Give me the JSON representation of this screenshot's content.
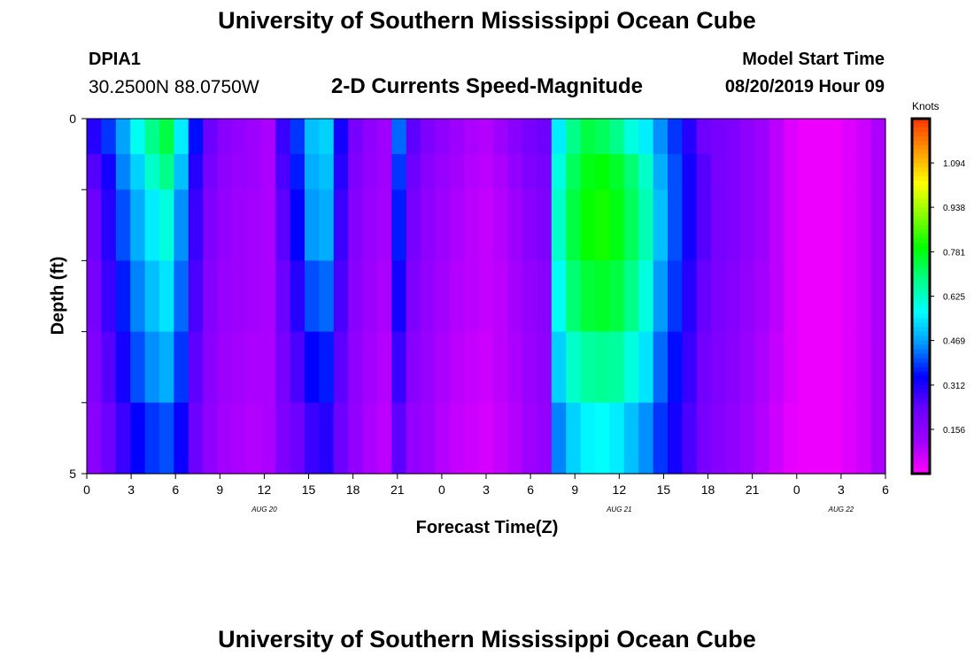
{
  "header": {
    "title": "University of Southern Mississippi Ocean Cube",
    "footer_title": "University of Southern Mississippi Ocean Cube",
    "station_id": "DPIA1",
    "station_coords": "30.2500N 88.0750W",
    "subtitle": "2-D Currents Speed-Magnitude",
    "model_label": "Model Start Time",
    "model_time": "08/20/2019 Hour 09"
  },
  "chart_data": {
    "type": "heatmap",
    "title": "2-D Currents Speed-Magnitude",
    "xlabel": "Forecast Time(Z)",
    "ylabel": "Depth (ft)",
    "x_tick_labels": [
      "0",
      "3",
      "6",
      "9",
      "12",
      "15",
      "18",
      "21",
      "0",
      "3",
      "6",
      "9",
      "12",
      "15",
      "18",
      "21",
      "0",
      "3",
      "6"
    ],
    "y_tick_labels": [
      "0",
      "5"
    ],
    "y_range": [
      0,
      5
    ],
    "day_labels": [
      {
        "label": "AUG 20",
        "hour": 12
      },
      {
        "label": "AUG 21",
        "hour": 36
      },
      {
        "label": "AUG 22",
        "hour": 51
      }
    ],
    "colorbar": {
      "unit": "Knots",
      "tick_labels": [
        "1.094",
        "0.938",
        "0.781",
        "0.625",
        "0.469",
        "0.312",
        "0.156"
      ],
      "ticks": [
        1.094,
        0.938,
        0.781,
        0.625,
        0.469,
        0.312,
        0.156
      ],
      "range": [
        0,
        1.25
      ],
      "colors": [
        "#ff00ff",
        "#a000ff",
        "#6a00ff",
        "#0000ff",
        "#0096ff",
        "#00ffff",
        "#00ff88",
        "#00ff00",
        "#88ff00",
        "#ffff00",
        "#ff9900",
        "#ff3300"
      ]
    },
    "hours": [
      0,
      1,
      2,
      3,
      4,
      5,
      6,
      7,
      8,
      9,
      10,
      11,
      12,
      13,
      14,
      15,
      16,
      17,
      18,
      19,
      20,
      21,
      22,
      23,
      24,
      25,
      26,
      27,
      28,
      29,
      30,
      31,
      32,
      33,
      34,
      35,
      36,
      37,
      38,
      39,
      40,
      41,
      42,
      43,
      44,
      45,
      46,
      47,
      48,
      49,
      50,
      51,
      52,
      53,
      54
    ],
    "depth_layers": [
      0,
      0.5,
      1.5,
      2.5,
      3.5,
      4.5
    ],
    "speed_knots": [
      [
        0.3,
        0.38,
        0.47,
        0.58,
        0.68,
        0.74,
        0.55,
        0.35,
        0.22,
        0.16,
        0.14,
        0.12,
        0.1,
        0.28,
        0.38,
        0.5,
        0.52,
        0.32,
        0.2,
        0.15,
        0.12,
        0.42,
        0.24,
        0.18,
        0.15,
        0.12,
        0.1,
        0.09,
        0.12,
        0.16,
        0.2,
        0.22,
        0.55,
        0.68,
        0.74,
        0.72,
        0.68,
        0.6,
        0.55,
        0.45,
        0.38,
        0.3,
        0.22,
        0.2,
        0.18,
        0.15,
        0.12,
        0.08,
        0.04,
        0.02,
        0.02,
        0.02,
        0.04,
        0.06,
        0.1
      ],
      [
        0.25,
        0.32,
        0.44,
        0.52,
        0.62,
        0.68,
        0.5,
        0.3,
        0.2,
        0.15,
        0.13,
        0.12,
        0.1,
        0.26,
        0.36,
        0.48,
        0.5,
        0.3,
        0.18,
        0.14,
        0.12,
        0.38,
        0.22,
        0.16,
        0.13,
        0.11,
        0.09,
        0.08,
        0.1,
        0.14,
        0.18,
        0.2,
        0.6,
        0.72,
        0.78,
        0.79,
        0.76,
        0.7,
        0.62,
        0.48,
        0.4,
        0.32,
        0.25,
        0.2,
        0.18,
        0.15,
        0.12,
        0.08,
        0.04,
        0.02,
        0.02,
        0.02,
        0.04,
        0.06,
        0.1
      ],
      [
        0.22,
        0.3,
        0.4,
        0.48,
        0.55,
        0.6,
        0.45,
        0.28,
        0.18,
        0.14,
        0.12,
        0.11,
        0.1,
        0.24,
        0.34,
        0.46,
        0.48,
        0.28,
        0.17,
        0.13,
        0.11,
        0.36,
        0.2,
        0.15,
        0.12,
        0.1,
        0.08,
        0.07,
        0.09,
        0.12,
        0.16,
        0.18,
        0.62,
        0.74,
        0.8,
        0.81,
        0.78,
        0.72,
        0.64,
        0.5,
        0.4,
        0.32,
        0.25,
        0.2,
        0.18,
        0.15,
        0.12,
        0.08,
        0.04,
        0.02,
        0.02,
        0.02,
        0.04,
        0.06,
        0.1
      ],
      [
        0.2,
        0.28,
        0.36,
        0.44,
        0.5,
        0.54,
        0.42,
        0.26,
        0.17,
        0.13,
        0.12,
        0.11,
        0.1,
        0.22,
        0.3,
        0.4,
        0.42,
        0.26,
        0.16,
        0.12,
        0.1,
        0.32,
        0.18,
        0.14,
        0.11,
        0.09,
        0.08,
        0.07,
        0.08,
        0.11,
        0.14,
        0.16,
        0.58,
        0.7,
        0.75,
        0.76,
        0.74,
        0.68,
        0.6,
        0.46,
        0.38,
        0.3,
        0.23,
        0.19,
        0.17,
        0.14,
        0.11,
        0.08,
        0.04,
        0.02,
        0.02,
        0.02,
        0.04,
        0.06,
        0.1
      ],
      [
        0.18,
        0.25,
        0.32,
        0.4,
        0.45,
        0.48,
        0.38,
        0.24,
        0.16,
        0.12,
        0.11,
        0.1,
        0.1,
        0.2,
        0.26,
        0.34,
        0.36,
        0.24,
        0.15,
        0.11,
        0.09,
        0.28,
        0.16,
        0.13,
        0.1,
        0.08,
        0.07,
        0.06,
        0.08,
        0.1,
        0.13,
        0.15,
        0.52,
        0.62,
        0.66,
        0.67,
        0.66,
        0.6,
        0.54,
        0.42,
        0.35,
        0.28,
        0.21,
        0.18,
        0.16,
        0.13,
        0.1,
        0.07,
        0.04,
        0.02,
        0.02,
        0.02,
        0.04,
        0.06,
        0.1
      ],
      [
        0.16,
        0.22,
        0.28,
        0.34,
        0.38,
        0.4,
        0.33,
        0.22,
        0.15,
        0.11,
        0.1,
        0.09,
        0.1,
        0.18,
        0.22,
        0.28,
        0.3,
        0.22,
        0.14,
        0.1,
        0.08,
        0.24,
        0.14,
        0.12,
        0.09,
        0.07,
        0.06,
        0.05,
        0.07,
        0.09,
        0.12,
        0.14,
        0.44,
        0.52,
        0.56,
        0.57,
        0.55,
        0.5,
        0.45,
        0.38,
        0.32,
        0.26,
        0.2,
        0.17,
        0.15,
        0.12,
        0.09,
        0.06,
        0.03,
        0.02,
        0.02,
        0.02,
        0.04,
        0.06,
        0.1
      ]
    ]
  }
}
